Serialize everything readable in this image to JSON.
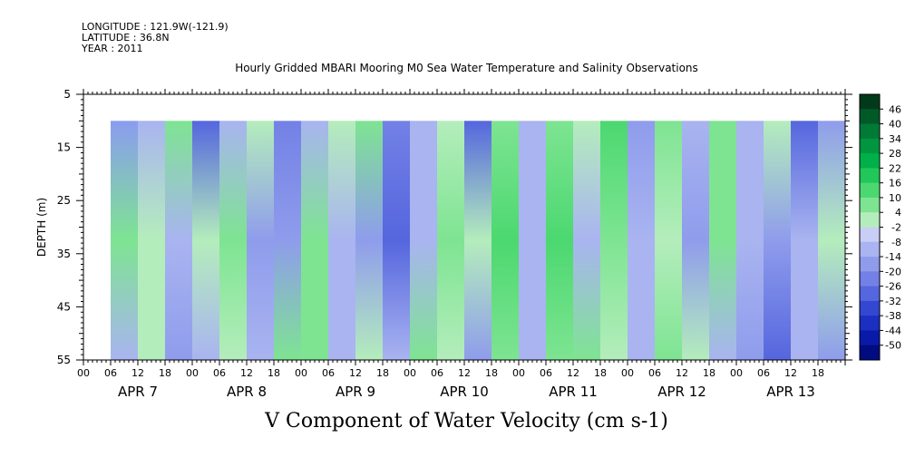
{
  "meta": {
    "longitude": "LONGITUDE : 121.9W(-121.9)",
    "latitude": "LATITUDE : 36.8N",
    "year": "YEAR : 2011"
  },
  "chart_data": {
    "type": "heatmap",
    "title": "Hourly Gridded MBARI Mooring M0 Sea Water Temperature and Salinity Observations",
    "xlabel": "V Component of Water Velocity (cm s-1)",
    "ylabel": "DEPTH (m)",
    "y_ticks": [
      5,
      15,
      25,
      35,
      45,
      55
    ],
    "ylim": [
      5,
      55
    ],
    "y_inverted": true,
    "data_depth_range": [
      10,
      55
    ],
    "x_hour_tick_labels": [
      "00",
      "06",
      "12",
      "18",
      "00",
      "06",
      "12",
      "18",
      "00",
      "06",
      "12",
      "18",
      "00",
      "06",
      "12",
      "18",
      "00",
      "06",
      "12",
      "18",
      "00",
      "06",
      "12",
      "18",
      "00",
      "06",
      "12",
      "18"
    ],
    "x_day_labels": [
      "APR  7",
      "APR  8",
      "APR  9",
      "APR 10",
      "APR 11",
      "APR 12",
      "APR 13"
    ],
    "x_start_hour_of_data": 6,
    "total_hours": 168,
    "colorbar": {
      "labels": [
        "46",
        "40",
        "34",
        "28",
        "22",
        "16",
        "10",
        "4",
        "-2",
        "-8",
        "-14",
        "-20",
        "-26",
        "-32",
        "-38",
        "-44",
        "-50"
      ],
      "colors": [
        "#003a1a",
        "#005a28",
        "#007a36",
        "#00963f",
        "#00b048",
        "#22c75a",
        "#4cd870",
        "#7ee492",
        "#b4edbc",
        "#c8cef5",
        "#a9b4f0",
        "#8f9cec",
        "#7381e6",
        "#5566de",
        "#3447d0",
        "#1b2fc0",
        "#0a1aa8",
        "#000c80"
      ]
    },
    "columns": [
      {
        "hour": 6,
        "top": "#8b9cf0",
        "mid": "#7ee492",
        "bot": "#a9b4f0"
      },
      {
        "hour": 12,
        "top": "#a9b4f0",
        "mid": "#b4edbc",
        "bot": "#b4edbc"
      },
      {
        "hour": 18,
        "top": "#7ee492",
        "mid": "#a9b4f0",
        "bot": "#8f9cec"
      },
      {
        "hour": 24,
        "top": "#5566de",
        "mid": "#b4edbc",
        "bot": "#a9b4f0"
      },
      {
        "hour": 30,
        "top": "#a9b4f0",
        "mid": "#7ee492",
        "bot": "#b4edbc"
      },
      {
        "hour": 36,
        "top": "#b4edbc",
        "mid": "#8f9cec",
        "bot": "#a9b4f0"
      },
      {
        "hour": 42,
        "top": "#7381e6",
        "mid": "#8f9cec",
        "bot": "#7ee492"
      },
      {
        "hour": 48,
        "top": "#a9b4f0",
        "mid": "#7ee492",
        "bot": "#7ee492"
      },
      {
        "hour": 54,
        "top": "#b4edbc",
        "mid": "#a9b4f0",
        "bot": "#a9b4f0"
      },
      {
        "hour": 60,
        "top": "#7ee492",
        "mid": "#8f9cec",
        "bot": "#b4edbc"
      },
      {
        "hour": 66,
        "top": "#7381e6",
        "mid": "#5566de",
        "bot": "#a9b4f0"
      },
      {
        "hour": 72,
        "top": "#a9b4f0",
        "mid": "#a9b4f0",
        "bot": "#7ee492"
      },
      {
        "hour": 78,
        "top": "#b4edbc",
        "mid": "#7ee492",
        "bot": "#b4edbc"
      },
      {
        "hour": 84,
        "top": "#5566de",
        "mid": "#b4edbc",
        "bot": "#8f9cec"
      },
      {
        "hour": 90,
        "top": "#7ee492",
        "mid": "#4cd870",
        "bot": "#7ee492"
      },
      {
        "hour": 96,
        "top": "#a9b4f0",
        "mid": "#a9b4f0",
        "bot": "#a9b4f0"
      },
      {
        "hour": 102,
        "top": "#7ee492",
        "mid": "#4cd870",
        "bot": "#7ee492"
      },
      {
        "hour": 108,
        "top": "#b4edbc",
        "mid": "#a9b4f0",
        "bot": "#7ee492"
      },
      {
        "hour": 114,
        "top": "#4cd870",
        "mid": "#7ee492",
        "bot": "#b4edbc"
      },
      {
        "hour": 120,
        "top": "#8f9cec",
        "mid": "#a9b4f0",
        "bot": "#a9b4f0"
      },
      {
        "hour": 126,
        "top": "#7ee492",
        "mid": "#b4edbc",
        "bot": "#7ee492"
      },
      {
        "hour": 132,
        "top": "#a9b4f0",
        "mid": "#8f9cec",
        "bot": "#b4edbc"
      },
      {
        "hour": 138,
        "top": "#7ee492",
        "mid": "#7ee492",
        "bot": "#a9b4f0"
      },
      {
        "hour": 144,
        "top": "#a9b4f0",
        "mid": "#a9b4f0",
        "bot": "#8f9cec"
      },
      {
        "hour": 150,
        "top": "#b4edbc",
        "mid": "#8f9cec",
        "bot": "#5566de"
      },
      {
        "hour": 156,
        "top": "#5566de",
        "mid": "#a9b4f0",
        "bot": "#a9b4f0"
      },
      {
        "hour": 162,
        "top": "#8f9cec",
        "mid": "#b4edbc",
        "bot": "#8f9cec"
      }
    ]
  }
}
